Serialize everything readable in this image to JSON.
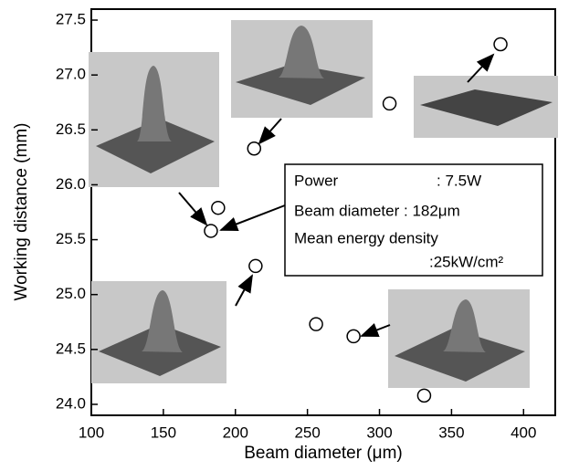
{
  "chart_data": {
    "type": "scatter",
    "xlabel": "Beam diameter (μm)",
    "ylabel": "Working distance (mm)",
    "x": [
      384,
      307,
      213,
      188,
      183,
      214,
      256,
      282,
      331
    ],
    "values": [
      27.28,
      26.74,
      26.33,
      25.79,
      25.58,
      25.26,
      24.73,
      24.62,
      24.08
    ],
    "xlim": [
      100,
      422
    ],
    "xticks": [
      100,
      150,
      200,
      250,
      300,
      350,
      400
    ],
    "ylim": [
      23.9,
      27.6
    ],
    "yticks": [
      {
        "value": 24,
        "label": "24.0"
      },
      24.5,
      {
        "value": 25,
        "label": "25.0"
      },
      25.5,
      {
        "value": 26,
        "label": "26.0"
      },
      26.5,
      {
        "value": 27,
        "label": "27.0"
      },
      27.5
    ],
    "annotation": {
      "power_label": "Power",
      "power_value": ": 7.5W",
      "diameter": "Beam diameter : 182μm",
      "density_label": "Mean energy density",
      "density_value": ":25kW/cm²"
    }
  }
}
